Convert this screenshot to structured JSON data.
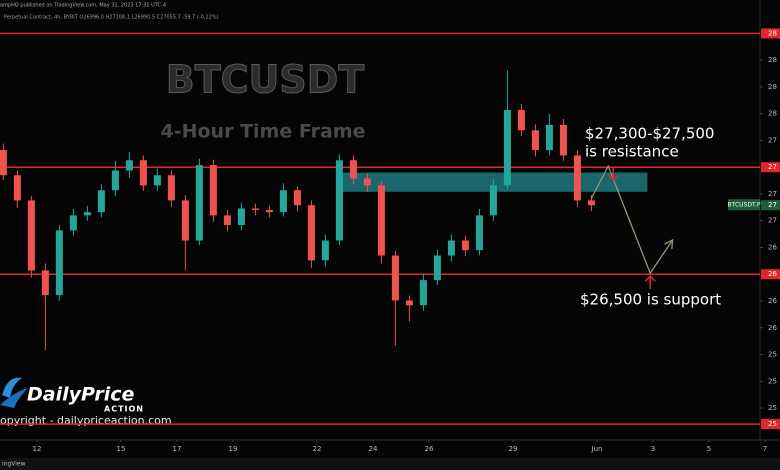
{
  "chart_data": {
    "type": "candlestick",
    "header": [
      "ampHQ published on TradingView.com, May 31, 2023 17:31 UTC-4",
      "Perpetual Contract, 4h, BYBIT  O26996.0 H27108.1 L26990.5 C27055.7 -59.7 (-0.22%)"
    ],
    "title": "BTCUSDT",
    "subtitle": "4-Hour Time Frame",
    "annotations": {
      "resistance": [
        "$27,300-$27,500",
        "is resistance"
      ],
      "support": "$26,500 is support"
    },
    "logo": {
      "name": "DailyPrice",
      "tagline": "ACTION",
      "copyright": "opyright - dailypriceaction.com"
    },
    "footer": "ingView",
    "symbol_label": "BTCUSDT.P",
    "last_price_label": "27",
    "up_color": "#26a69a",
    "down_color": "#ef5350",
    "level_color": "#e3262b",
    "zone_color": "#1e7f86",
    "projection_color": "#8a9a7a",
    "x": [
      10.8,
      11.3,
      11.8,
      12.3,
      12.8,
      13.3,
      13.8,
      14.3,
      14.8,
      15.3,
      15.8,
      16.3,
      16.8,
      17.3,
      17.8,
      18.3,
      18.8,
      19.3,
      19.8,
      20.3,
      20.8,
      21.3,
      21.8,
      22.3,
      22.8,
      23.3,
      23.8,
      24.3,
      24.8,
      25.3,
      25.8,
      26.3,
      26.8,
      27.3,
      27.8,
      28.3,
      28.8,
      29.3,
      29.8,
      30.3,
      30.8,
      31.3,
      31.8
    ],
    "open": [
      27660,
      27425,
      27190,
      26535,
      26305,
      26910,
      27050,
      27080,
      27285,
      27470,
      27565,
      27330,
      27425,
      27190,
      26815,
      27520,
      27050,
      26960,
      27115,
      27100,
      27080,
      27285,
      27145,
      26630,
      26815,
      27565,
      27395,
      27330,
      26675,
      26255,
      26210,
      26445,
      26675,
      26815,
      26725,
      27050,
      27330,
      28035,
      27845,
      27660,
      27895,
      27610,
      27190
    ],
    "high": [
      27720,
      27470,
      27230,
      26600,
      26960,
      27110,
      27140,
      27340,
      27560,
      27640,
      27610,
      27490,
      27470,
      27240,
      27580,
      27570,
      27100,
      27170,
      27160,
      27140,
      27350,
      27320,
      27190,
      26870,
      27620,
      27610,
      27440,
      27370,
      26720,
      26300,
      26500,
      26730,
      26870,
      26860,
      27110,
      27390,
      28405,
      28090,
      27900,
      28000,
      27950,
      27660,
      27240
    ],
    "low": [
      27380,
      27120,
      26470,
      25790,
      26250,
      26860,
      27000,
      27030,
      27230,
      27400,
      27280,
      27280,
      27130,
      26535,
      26770,
      26990,
      26900,
      26910,
      27050,
      27030,
      27040,
      27090,
      26560,
      26570,
      26770,
      27340,
      27270,
      26600,
      25835,
      26060,
      26160,
      26400,
      26620,
      26670,
      26680,
      27000,
      27290,
      27790,
      27600,
      27610,
      27560,
      27130,
      27090
    ],
    "close": [
      27425,
      27190,
      26535,
      26305,
      26910,
      27050,
      27080,
      27285,
      27470,
      27565,
      27330,
      27425,
      27190,
      26815,
      27520,
      27050,
      26960,
      27115,
      27100,
      27080,
      27285,
      27145,
      26630,
      26815,
      27565,
      27395,
      27330,
      26675,
      26255,
      26210,
      26445,
      26675,
      26815,
      26725,
      27050,
      27330,
      28035,
      27845,
      27660,
      27895,
      27610,
      27190,
      27145
    ],
    "levels": [
      {
        "value": 28750,
        "label": "28"
      },
      {
        "value": 27500,
        "label": "27"
      },
      {
        "value": 26500,
        "label": "26"
      },
      {
        "value": 25100,
        "label": "25"
      }
    ],
    "zone": [
      27270,
      27450
    ],
    "zone_x": [
      22.75,
      33.8
    ],
    "projection": {
      "x": [
        31.8,
        32.4,
        33.9,
        34.7
      ],
      "y": [
        27210,
        27510,
        26510,
        26820
      ]
    },
    "xlim": [
      10.68,
      37.82
    ],
    "ylim": [
      24970,
      28950
    ],
    "xticks": [
      12,
      15,
      17,
      19,
      22,
      24,
      26,
      29,
      {
        "value": 32,
        "label": "Jun"
      },
      {
        "value": 34,
        "label": "3"
      },
      {
        "value": 36,
        "label": "5"
      },
      {
        "value": 38,
        "label": "7"
      }
    ],
    "yticks": [
      {
        "value": 25250,
        "label": "25"
      },
      {
        "value": 25500,
        "label": "25"
      },
      {
        "value": 25750,
        "label": "25"
      },
      {
        "value": 26000,
        "label": "26"
      },
      {
        "value": 26250,
        "label": "26"
      },
      {
        "value": 26750,
        "label": "26"
      },
      {
        "value": 27000,
        "label": "27"
      },
      {
        "value": 27250,
        "label": "27"
      },
      {
        "value": 27750,
        "label": "27"
      },
      {
        "value": 28000,
        "label": "28"
      },
      {
        "value": 28250,
        "label": "28"
      },
      {
        "value": 28500,
        "label": "28"
      }
    ]
  }
}
